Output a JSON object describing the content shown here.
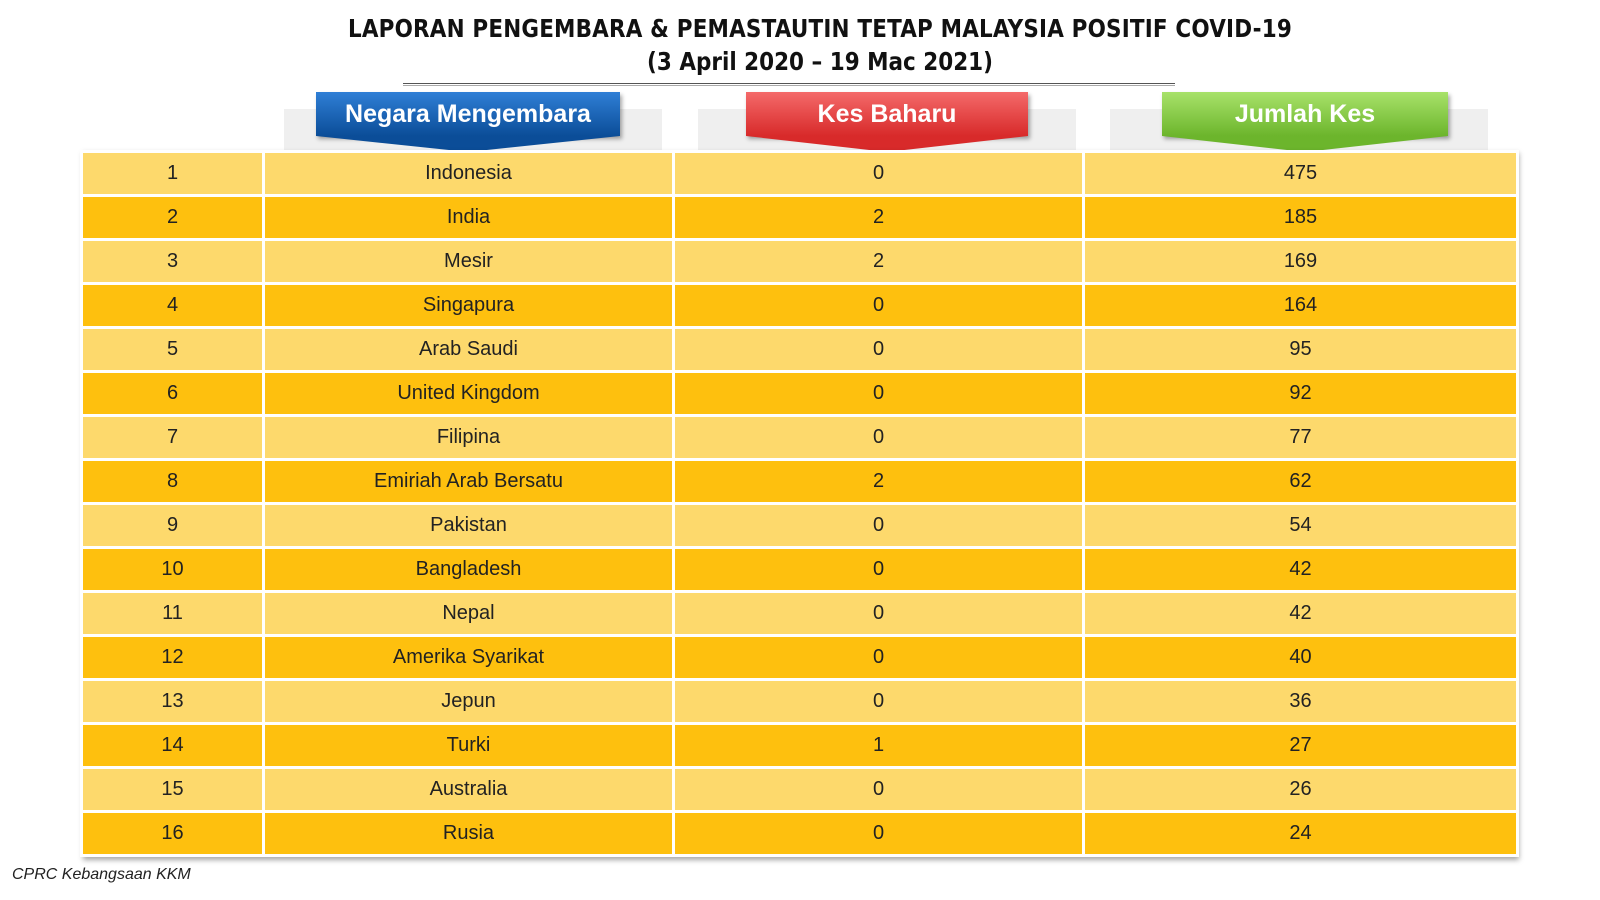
{
  "title": {
    "line1": "LAPORAN PENGEMBARA & PEMASTAUTIN TETAP MALAYSIA POSITIF COVID-19",
    "line2": "(3 April 2020 – 19 Mac 2021)"
  },
  "headers": {
    "country": "Negara Mengembara",
    "new_cases": "Kes Baharu",
    "total_cases": "Jumlah Kes"
  },
  "colors": {
    "header_blue": "#0b4d98",
    "header_red": "#d82a2a",
    "header_green": "#6cb52c",
    "row_light": "#fdd96c",
    "row_dark": "#fec00e"
  },
  "rows": [
    {
      "no": "1",
      "country": "Indonesia",
      "new": "0",
      "total": "475"
    },
    {
      "no": "2",
      "country": "India",
      "new": "2",
      "total": "185"
    },
    {
      "no": "3",
      "country": "Mesir",
      "new": "2",
      "total": "169"
    },
    {
      "no": "4",
      "country": "Singapura",
      "new": "0",
      "total": "164"
    },
    {
      "no": "5",
      "country": "Arab Saudi",
      "new": "0",
      "total": "95"
    },
    {
      "no": "6",
      "country": "United Kingdom",
      "new": "0",
      "total": "92"
    },
    {
      "no": "7",
      "country": "Filipina",
      "new": "0",
      "total": "77"
    },
    {
      "no": "8",
      "country": "Emiriah Arab Bersatu",
      "new": "2",
      "total": "62"
    },
    {
      "no": "9",
      "country": "Pakistan",
      "new": "0",
      "total": "54"
    },
    {
      "no": "10",
      "country": "Bangladesh",
      "new": "0",
      "total": "42"
    },
    {
      "no": "11",
      "country": "Nepal",
      "new": "0",
      "total": "42"
    },
    {
      "no": "12",
      "country": "Amerika Syarikat",
      "new": "0",
      "total": "40"
    },
    {
      "no": "13",
      "country": "Jepun",
      "new": "0",
      "total": "36"
    },
    {
      "no": "14",
      "country": "Turki",
      "new": "1",
      "total": "27"
    },
    {
      "no": "15",
      "country": "Australia",
      "new": "0",
      "total": "26"
    },
    {
      "no": "16",
      "country": "Rusia",
      "new": "0",
      "total": "24"
    }
  ],
  "source": "CPRC Kebangsaan KKM"
}
